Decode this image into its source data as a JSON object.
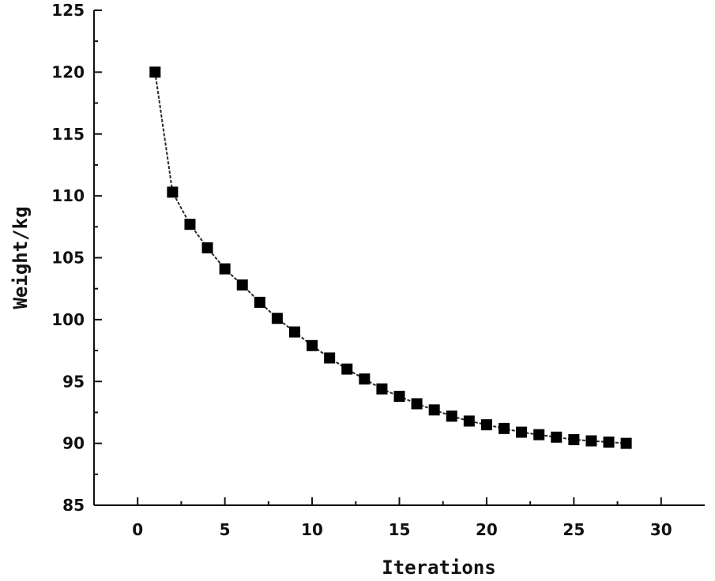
{
  "chart_data": {
    "type": "line",
    "xlabel": "Iterations",
    "ylabel": "Weight/kg",
    "xlim": [
      -2.5,
      32.5
    ],
    "ylim": [
      85,
      125
    ],
    "xticks": [
      0,
      5,
      10,
      15,
      20,
      25,
      30
    ],
    "yticks": [
      85,
      90,
      95,
      100,
      105,
      110,
      115,
      120,
      125
    ],
    "xtick_labels": [
      "0",
      "5",
      "10",
      "15",
      "20",
      "25",
      "30"
    ],
    "ytick_labels": [
      "85",
      "90",
      "95",
      "100",
      "105",
      "110",
      "115",
      "120",
      "125"
    ],
    "grid": false,
    "marker": "square",
    "series": [
      {
        "x": [
          1,
          2,
          3,
          4,
          5,
          6,
          7,
          8,
          9,
          10,
          11,
          12,
          13,
          14,
          15,
          16,
          17,
          18,
          19,
          20,
          21,
          22,
          23,
          24,
          25,
          26,
          27,
          28
        ],
        "values": [
          120.0,
          110.3,
          107.7,
          105.8,
          104.1,
          102.8,
          101.4,
          100.1,
          99.0,
          97.9,
          96.9,
          96.0,
          95.2,
          94.4,
          93.8,
          93.2,
          92.7,
          92.2,
          91.8,
          91.5,
          91.2,
          90.9,
          90.7,
          90.5,
          90.3,
          90.2,
          90.1,
          90.0
        ]
      }
    ],
    "colors": {
      "line": "#2a2a2a",
      "marker": "#000000",
      "axis": "#111111"
    }
  }
}
